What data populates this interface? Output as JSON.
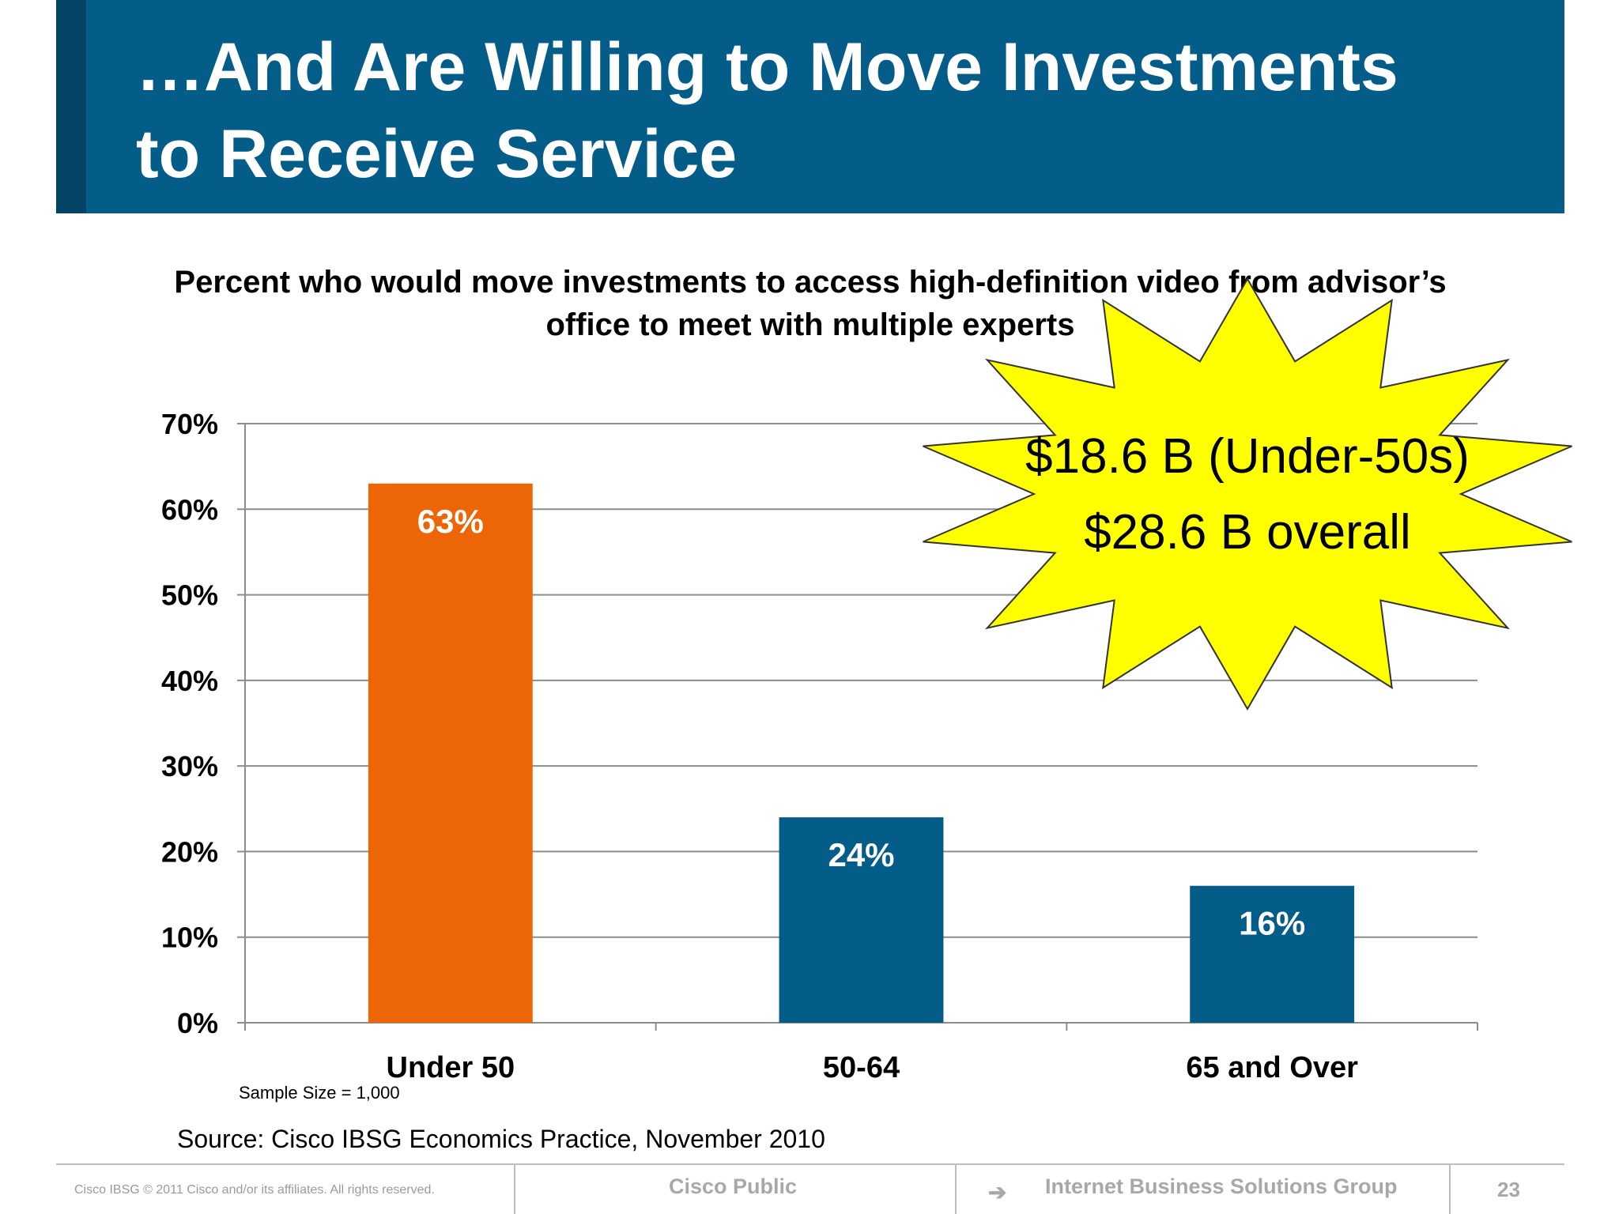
{
  "slide": {
    "title": "…And Are Willing to Move Investments\nto Receive Service",
    "sample_size": "Sample Size = 1,000",
    "source": "Source: Cisco IBSG Economics Practice, November 2010"
  },
  "callout": {
    "line1": "$18.6 B (Under-50s)",
    "line2": "$28.6 B overall",
    "fill": "#ffff00"
  },
  "footer": {
    "copyright": "Cisco IBSG © 2011 Cisco and/or its affiliates. All rights reserved.",
    "classification": "Cisco Public",
    "arrow_icon": "➔",
    "group": "Internet Business Solutions Group",
    "page_number": "23"
  },
  "colors": {
    "header": "#045c88",
    "highlight_bar": "#ec6608",
    "bar": "#045c88"
  },
  "chart_data": {
    "type": "bar",
    "title": "Percent who would move investments to access high-definition video from advisor’s\noffice to meet with multiple experts",
    "categories": [
      "Under 50",
      "50-64",
      "65 and Over"
    ],
    "values": [
      63,
      24,
      16
    ],
    "data_labels": [
      "63%",
      "24%",
      "16%"
    ],
    "bar_colors": [
      "#ec6608",
      "#045c88",
      "#045c88"
    ],
    "ylim": [
      0,
      70
    ],
    "yticks": [
      "0%",
      "10%",
      "20%",
      "30%",
      "40%",
      "50%",
      "60%",
      "70%"
    ],
    "grid": true,
    "xlabel": "",
    "ylabel": ""
  }
}
